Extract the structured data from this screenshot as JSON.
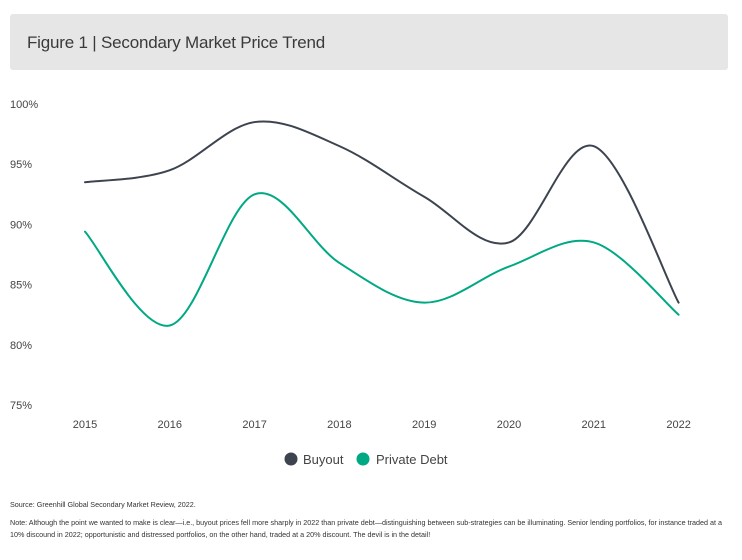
{
  "title": "Figure 1 | Secondary Market Price Trend",
  "source": "Source: Greenhill Global Secondary Market Review, 2022.",
  "note": "Note: Although the point we wanted to make is clear—i.e., buyout prices fell more sharply in 2022 than private debt—distinguishing between sub-strategies can be illuminating. Senior lending portfolios, for instance traded at a 10% discound in 2022; opportunistic and distressed portfolios, on the other hand, traded at a 20% discount. The devil is in the detail!",
  "colors": {
    "buyout": "#3d4450",
    "private_debt": "#00a884"
  },
  "chart_data": {
    "type": "line",
    "x": [
      "2015",
      "2016",
      "2017",
      "2018",
      "2019",
      "2020",
      "2021",
      "2022"
    ],
    "series": [
      {
        "name": "Buyout",
        "values": [
          93.5,
          94.5,
          98.5,
          96.5,
          92.3,
          88.5,
          96.5,
          83.5
        ]
      },
      {
        "name": "Private Debt",
        "values": [
          89.4,
          81.6,
          92.5,
          86.8,
          83.5,
          86.5,
          88.5,
          82.5
        ]
      }
    ],
    "y_ticks": [
      "100%",
      "95%",
      "90%",
      "85%",
      "80%",
      "75%"
    ],
    "ylim": [
      75,
      100
    ],
    "grid": false,
    "legend": "bottom-center"
  }
}
